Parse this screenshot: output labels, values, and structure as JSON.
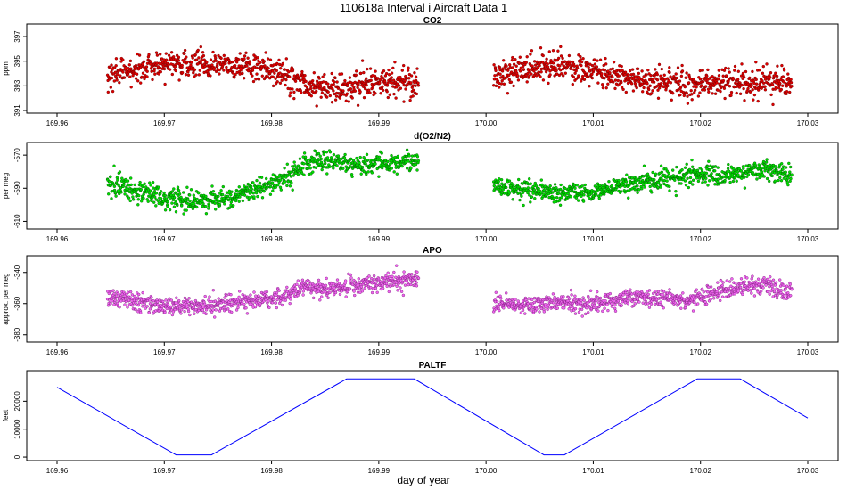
{
  "figure": {
    "title": "110618a   Interval i Aircraft Data 1",
    "xlabel": "day of year"
  },
  "chart_data": [
    {
      "type": "scatter",
      "title": "CO2",
      "ylabel": "ppm",
      "xlim": [
        169.96,
        170.03
      ],
      "ylim": [
        391,
        397.8
      ],
      "xticks": [
        "169.96",
        "169.97",
        "169.98",
        "169.99",
        "170.00",
        "170.01",
        "170.02",
        "170.03"
      ],
      "yticks": [
        391,
        393,
        395,
        397
      ],
      "ytick_labels": [
        "391",
        "393",
        "395",
        "397"
      ],
      "point_color": "#dd0000",
      "edge_color": "#6b0000",
      "series": [
        {
          "segments": [
            [
              169.9647,
              169.9937
            ],
            [
              170.0007,
              170.0285
            ]
          ],
          "trend": [
            [
              169.9647,
              393.9
            ],
            [
              169.967,
              394.3
            ],
            [
              169.97,
              394.7
            ],
            [
              169.973,
              394.8
            ],
            [
              169.976,
              394.7
            ],
            [
              169.979,
              394.5
            ],
            [
              169.981,
              393.9
            ],
            [
              169.983,
              393.2
            ],
            [
              169.985,
              392.9
            ],
            [
              169.988,
              393.0
            ],
            [
              169.991,
              393.3
            ],
            [
              169.9937,
              393.4
            ],
            [
              170.0007,
              393.7
            ],
            [
              170.004,
              394.5
            ],
            [
              170.007,
              394.6
            ],
            [
              170.01,
              394.2
            ],
            [
              170.013,
              393.6
            ],
            [
              170.016,
              393.3
            ],
            [
              170.019,
              393.0
            ],
            [
              170.022,
              393.5
            ],
            [
              170.025,
              393.2
            ],
            [
              170.0285,
              393.3
            ]
          ],
          "spread": 1.0
        }
      ]
    },
    {
      "type": "scatter",
      "title": "d(O2/N2)",
      "ylabel": "per meg",
      "xlim": [
        169.96,
        170.03
      ],
      "ylim": [
        -613,
        -564
      ],
      "xticks": [
        "169.96",
        "169.97",
        "169.98",
        "169.99",
        "170.00",
        "170.01",
        "170.02",
        "170.03"
      ],
      "yticks": [
        -610,
        -590,
        -570
      ],
      "ytick_labels": [
        "-610",
        "-590",
        "-570"
      ],
      "point_color": "#00dd00",
      "edge_color": "#005500",
      "series": [
        {
          "segments": [
            [
              169.9647,
              169.9937
            ],
            [
              170.0007,
              170.0285
            ]
          ],
          "trend": [
            [
              169.9647,
              -586
            ],
            [
              169.967,
              -591
            ],
            [
              169.97,
              -596
            ],
            [
              169.973,
              -598
            ],
            [
              169.976,
              -596
            ],
            [
              169.979,
              -590
            ],
            [
              169.981,
              -585
            ],
            [
              169.983,
              -576
            ],
            [
              169.985,
              -573
            ],
            [
              169.988,
              -576
            ],
            [
              169.991,
              -575
            ],
            [
              169.9937,
              -573
            ],
            [
              170.0007,
              -589
            ],
            [
              170.004,
              -591
            ],
            [
              170.007,
              -593
            ],
            [
              170.01,
              -592
            ],
            [
              170.013,
              -588
            ],
            [
              170.016,
              -585
            ],
            [
              170.019,
              -581
            ],
            [
              170.022,
              -583
            ],
            [
              170.025,
              -578
            ],
            [
              170.0285,
              -582
            ]
          ],
          "spread": 5.5
        }
      ]
    },
    {
      "type": "scatter",
      "title": "APO",
      "ylabel": "approx. per meg",
      "xlim": [
        169.96,
        170.03
      ],
      "ylim": [
        -383,
        -331
      ],
      "xticks": [
        "169.96",
        "169.97",
        "169.98",
        "169.99",
        "170.00",
        "170.01",
        "170.02",
        "170.03"
      ],
      "yticks": [
        -380,
        -360,
        -340
      ],
      "ytick_labels": [
        "-380",
        "-360",
        "-340"
      ],
      "point_color": "#ee66ee",
      "edge_color": "#7a1a7a",
      "series": [
        {
          "segments": [
            [
              169.9647,
              169.9937
            ],
            [
              170.0007,
              170.0285
            ]
          ],
          "trend": [
            [
              169.9647,
              -356
            ],
            [
              169.967,
              -358
            ],
            [
              169.97,
              -362
            ],
            [
              169.973,
              -362
            ],
            [
              169.976,
              -360
            ],
            [
              169.979,
              -358
            ],
            [
              169.981,
              -355
            ],
            [
              169.983,
              -350
            ],
            [
              169.986,
              -350
            ],
            [
              169.989,
              -348
            ],
            [
              169.9937,
              -344
            ],
            [
              170.0007,
              -360
            ],
            [
              170.004,
              -361
            ],
            [
              170.007,
              -359
            ],
            [
              170.01,
              -361
            ],
            [
              170.013,
              -357
            ],
            [
              170.016,
              -356
            ],
            [
              170.019,
              -358
            ],
            [
              170.022,
              -352
            ],
            [
              170.025,
              -348
            ],
            [
              170.0285,
              -353
            ]
          ],
          "spread": 5.0
        }
      ]
    },
    {
      "type": "line",
      "title": "PALTF",
      "ylabel": "feet",
      "xlim": [
        169.96,
        170.03
      ],
      "ylim": [
        -300,
        30000
      ],
      "xticks": [
        "169.96",
        "169.97",
        "169.98",
        "169.99",
        "170.00",
        "170.01",
        "170.02",
        "170.03"
      ],
      "yticks": [
        0,
        10000,
        20000
      ],
      "ytick_labels": [
        "0",
        "10000",
        "20000"
      ],
      "line_color": "#0000ff",
      "series": [
        {
          "x": [
            169.96,
            169.9711,
            169.9744,
            169.987,
            169.9933,
            170.0054,
            170.0073,
            170.0197,
            170.0237,
            170.03
          ],
          "y": [
            25000,
            800,
            800,
            28000,
            28000,
            800,
            800,
            28000,
            28000,
            14000
          ]
        }
      ]
    }
  ]
}
